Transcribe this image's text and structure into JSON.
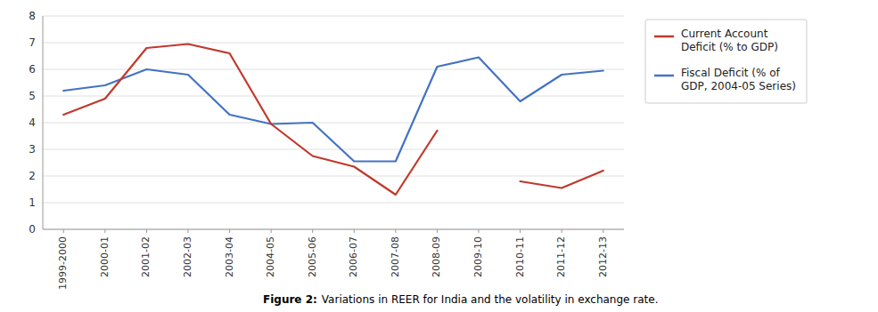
{
  "chart_data": {
    "type": "line",
    "categories": [
      "1999-2000",
      "2000-01",
      "2001-02",
      "2002-03",
      "2003-04",
      "2004-05",
      "2005-06",
      "2006-07",
      "2007-08",
      "2008-09",
      "2009-10",
      "2010-11",
      "2011-12",
      "2012-13"
    ],
    "series": [
      {
        "name": "Current Account\nDeficit (% to GDP)",
        "color": "#c0392b",
        "values": [
          4.3,
          4.9,
          6.8,
          6.95,
          6.6,
          3.95,
          2.75,
          2.35,
          1.3,
          3.7,
          null,
          1.8,
          1.55,
          2.2
        ]
      },
      {
        "name": "Fiscal Deficit (% of\nGDP, 2004-05 Series)",
        "color": "#4472c4",
        "values": [
          5.2,
          5.4,
          6.0,
          5.8,
          4.3,
          3.95,
          4.0,
          2.55,
          2.55,
          6.1,
          6.45,
          4.8,
          5.8,
          5.95
        ]
      }
    ],
    "ylim": [
      0,
      8
    ],
    "yticks": [
      0,
      1,
      2,
      3,
      4,
      5,
      6,
      7,
      8
    ],
    "grid": true,
    "legend": "right",
    "annotations": [
      "Figure 2:",
      "Variations in REER for India and the volatility in exchange rate."
    ]
  }
}
